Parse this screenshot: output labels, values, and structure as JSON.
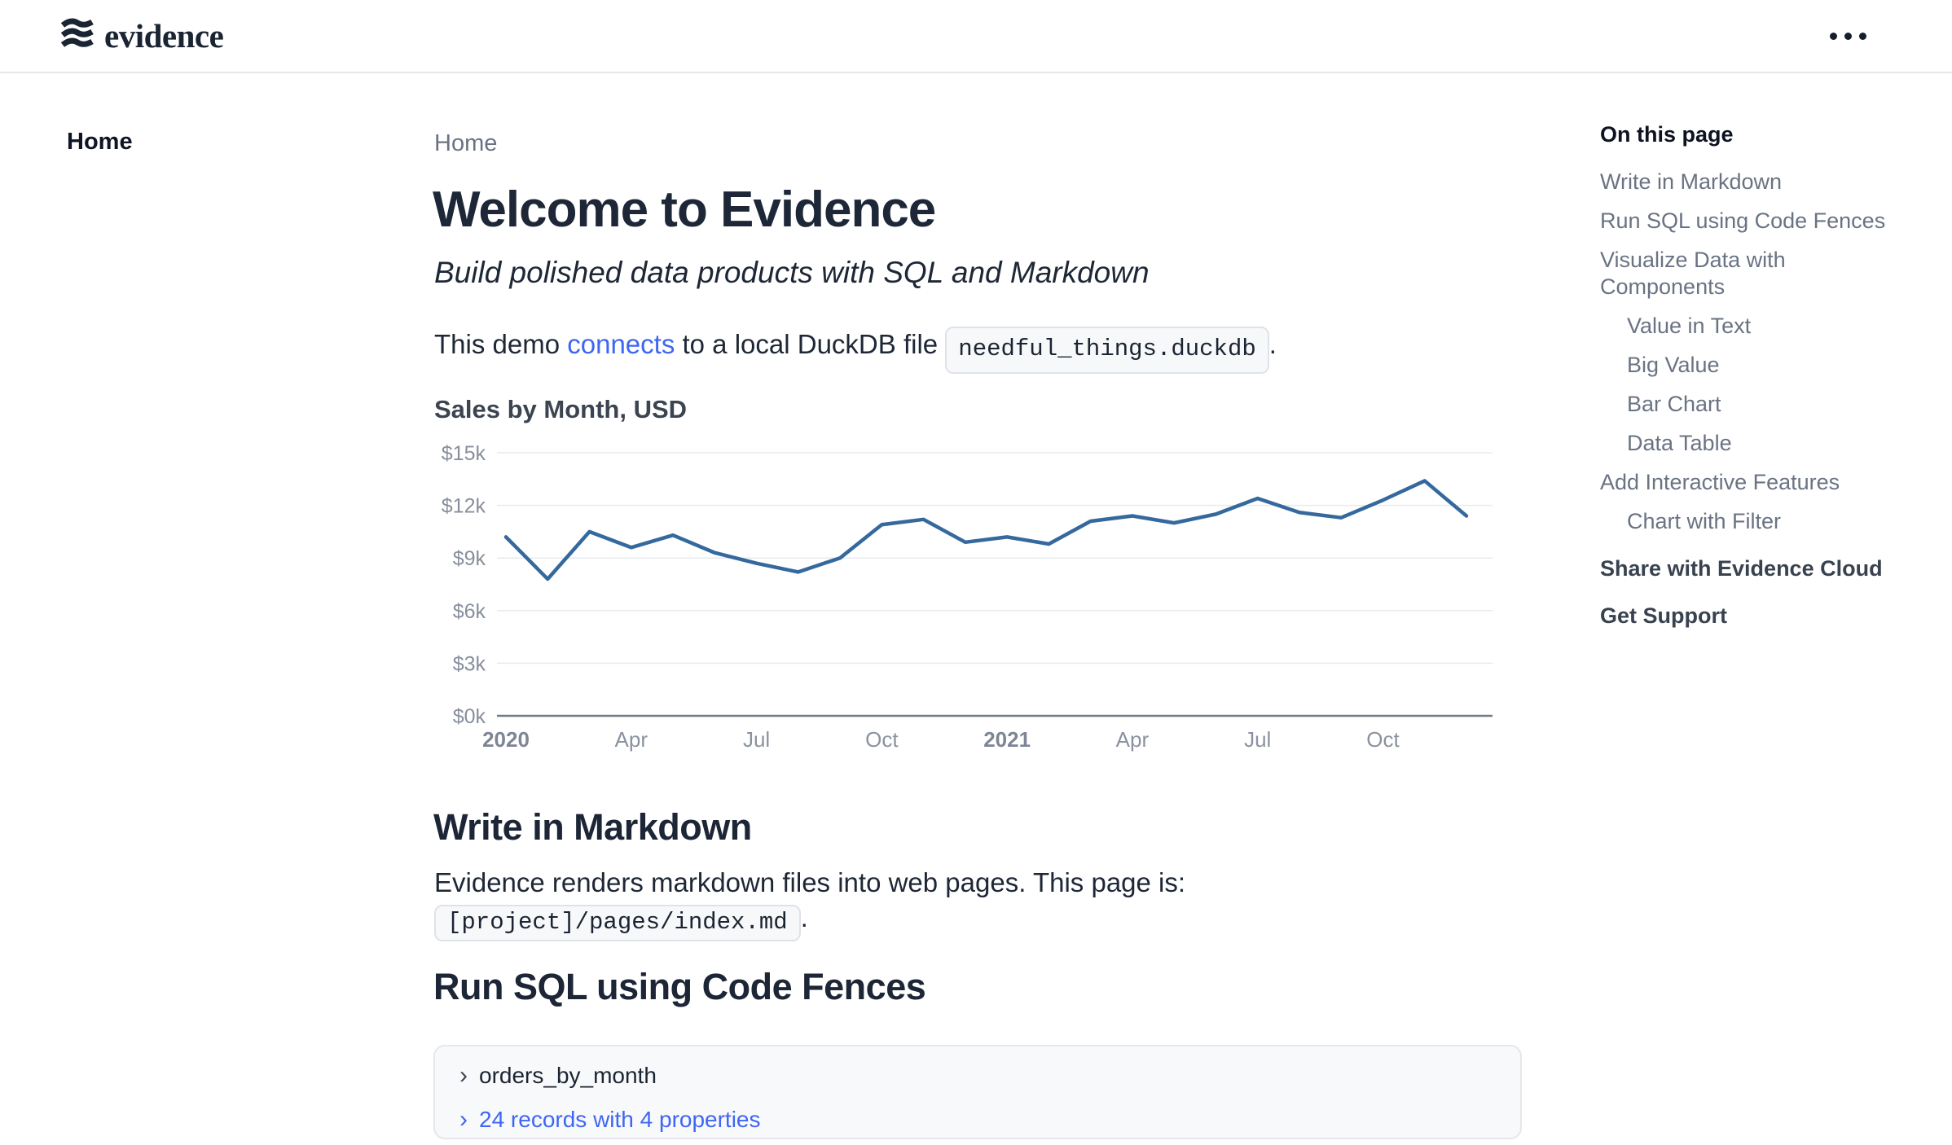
{
  "header": {
    "logo_text": "evidence"
  },
  "sidebar": {
    "home_label": "Home"
  },
  "breadcrumb": "Home",
  "page": {
    "title": "Welcome to Evidence",
    "subtitle": "Build polished data products with SQL and Markdown",
    "intro": {
      "before": "This demo ",
      "link": "connects",
      "middle": " to a local DuckDB file ",
      "code": "needful_things.duckdb",
      "after": "."
    }
  },
  "sections": {
    "markdown": {
      "heading": "Write in Markdown",
      "body": "Evidence renders markdown files into web pages. This page is:",
      "code": "[project]/pages/index.md",
      "after_code": "."
    },
    "sql": {
      "heading": "Run SQL using Code Fences",
      "chevron": "›",
      "query_name": "orders_by_month",
      "result_summary": "24 records with 4 properties"
    }
  },
  "toc": {
    "heading": "On this page",
    "items": [
      {
        "label": "Write in Markdown"
      },
      {
        "label": "Run SQL using Code Fences"
      },
      {
        "label": "Visualize Data with Components"
      },
      {
        "label": "Value in Text"
      },
      {
        "label": "Big Value"
      },
      {
        "label": "Bar Chart"
      },
      {
        "label": "Data Table"
      },
      {
        "label": "Add Interactive Features"
      },
      {
        "label": "Chart with Filter"
      },
      {
        "label": "Share with Evidence Cloud"
      },
      {
        "label": "Get Support"
      }
    ]
  },
  "chart_data": {
    "type": "line",
    "title": "Sales by Month, USD",
    "x": [
      "2020-01",
      "2020-02",
      "2020-03",
      "2020-04",
      "2020-05",
      "2020-06",
      "2020-07",
      "2020-08",
      "2020-09",
      "2020-10",
      "2020-11",
      "2020-12",
      "2021-01",
      "2021-02",
      "2021-03",
      "2021-04",
      "2021-05",
      "2021-06",
      "2021-07",
      "2021-08",
      "2021-09",
      "2021-10",
      "2021-11",
      "2021-12"
    ],
    "values": [
      10200,
      7800,
      10500,
      9600,
      10300,
      9300,
      8700,
      8200,
      9000,
      10900,
      11200,
      9900,
      10200,
      9800,
      11100,
      11400,
      11000,
      11500,
      12400,
      11600,
      11300,
      12300,
      13400,
      11400
    ],
    "ylim": [
      0,
      15000
    ],
    "y_ticks": [
      0,
      3000,
      6000,
      9000,
      12000,
      15000
    ],
    "y_tick_labels": [
      "$0k",
      "$3k",
      "$6k",
      "$9k",
      "$12k",
      "$15k"
    ],
    "x_tick_positions": [
      0,
      3,
      6,
      9,
      12,
      15,
      18,
      21
    ],
    "x_tick_labels": [
      "2020",
      "Apr",
      "Jul",
      "Oct",
      "2021",
      "Apr",
      "Jul",
      "Oct"
    ],
    "x_tick_bold": [
      true,
      false,
      false,
      false,
      true,
      false,
      false,
      false
    ],
    "grid": true,
    "legend": false,
    "line_color": "#35699E",
    "gridline_color": "#E8EAEE",
    "axis_line_color": "#717A87"
  },
  "colors": {
    "link_blue": "#3F66F3",
    "heading_dark": "#1D2636",
    "muted_gray": "#6A7383"
  }
}
